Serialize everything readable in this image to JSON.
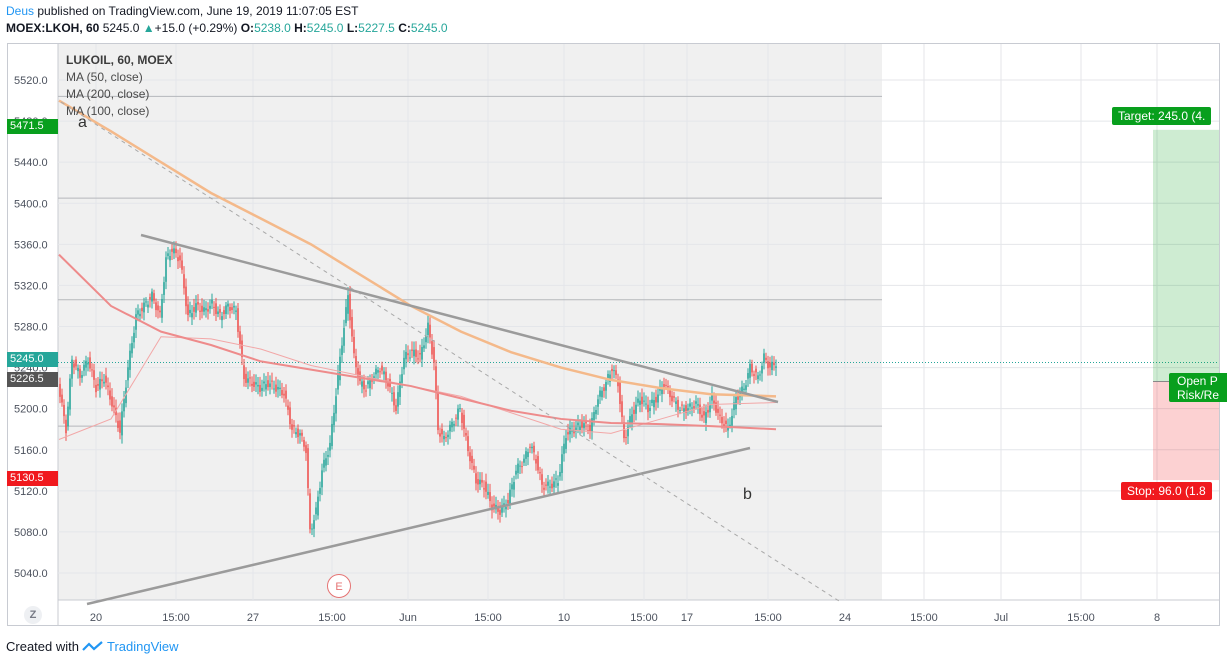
{
  "header": {
    "author": "Deus",
    "published": "published on TradingView.com, June 19, 2019 11:07:05 EST",
    "symbol": "MOEX:LKOH, 60",
    "last": "5245.0",
    "change": "+15.0 (+0.29%)",
    "o_label": "O:",
    "o_val": "5238.0",
    "h_label": "H:",
    "h_val": "5245.0",
    "l_label": "L:",
    "l_val": "5227.5",
    "c_label": "C:",
    "c_val": "5245.0"
  },
  "legend": {
    "title": "LUKOIL, 60, MOEX",
    "ma1": "MA (50, close)",
    "ma2": "MA (200, close)",
    "ma3": "MA (100, close)"
  },
  "y_axis": [
    "5520.0",
    "5480.0",
    "5440.0",
    "5400.0",
    "5360.0",
    "5320.0",
    "5280.0",
    "5240.0",
    "5200.0",
    "5160.0",
    "5120.0",
    "5080.0",
    "5040.0"
  ],
  "x_axis": [
    "20",
    "15:00",
    "27",
    "15:00",
    "Jun",
    "15:00",
    "10",
    "15:00",
    "17",
    "15:00",
    "24",
    "15:00",
    "Jul",
    "15:00",
    "8"
  ],
  "price_labels": {
    "top": "5471.5",
    "current": "5245.0",
    "ma": "5226.5",
    "bottom": "5130.5"
  },
  "points": {
    "a": "a",
    "b": "b"
  },
  "events": {
    "earnings": "E"
  },
  "position": {
    "target": "Target: 245.0 (4.",
    "stop": "Stop: 96.0 (1.8",
    "open1": "Open P",
    "open2": "Risk/Re"
  },
  "footer": {
    "created": "Created with",
    "brand": "TradingView"
  },
  "zoom": "Z",
  "colors": {
    "up": "#26a69a",
    "down": "#ef5350",
    "ma50": "#f2a7a7",
    "ma100": "#ee8b8b",
    "ma200": "#f4b98a",
    "target": "#089f1d",
    "stop": "#f0191e"
  },
  "chart_data": {
    "type": "candlestick",
    "symbol": "MOEX:LKOH",
    "timeframe": "60",
    "ylim": [
      5025,
      5545
    ],
    "ticks_y": [
      5040,
      5080,
      5120,
      5160,
      5200,
      5240,
      5280,
      5320,
      5360,
      5400,
      5440,
      5480,
      5520
    ],
    "ma200": [
      5500,
      5470,
      5440,
      5410,
      5385,
      5360,
      5330,
      5300,
      5275,
      5255,
      5240,
      5228,
      5220,
      5214,
      5212
    ],
    "ma100": [
      5350,
      5300,
      5275,
      5262,
      5246,
      5238,
      5230,
      5222,
      5210,
      5198,
      5190,
      5186,
      5185,
      5183,
      5180
    ],
    "ma50": [
      5170,
      5190,
      5270,
      5268,
      5258,
      5242,
      5232,
      5222,
      5212,
      5196,
      5180,
      5176,
      5190,
      5204,
      5206
    ],
    "trendlines": [
      {
        "name": "upper",
        "from": [
          5368,
          "May 21 15:00"
        ],
        "to": [
          5204,
          "Jun 18 15:00"
        ]
      },
      {
        "name": "lower",
        "from": [
          5018,
          "May 20"
        ],
        "to": [
          5160,
          "Jun 18 12:00"
        ]
      }
    ],
    "position_target_price": 5471.5,
    "position_entry_price": 5226.5,
    "position_stop_price": 5130.5
  }
}
